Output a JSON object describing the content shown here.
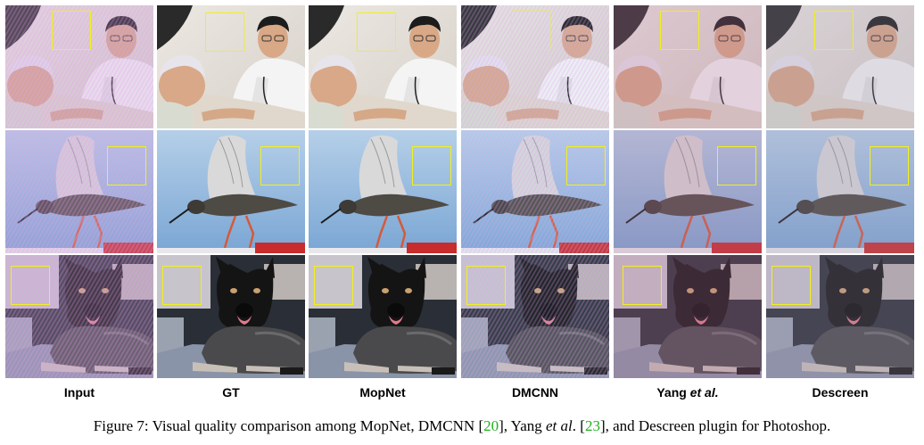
{
  "figure": {
    "columns": [
      {
        "label_text": "Input"
      },
      {
        "label_text": "GT"
      },
      {
        "label_text": "MopNet"
      },
      {
        "label_text": "DMCNN"
      },
      {
        "label_text_pre": "Yang ",
        "label_text_it": "et al."
      },
      {
        "label_text": "Descreen"
      }
    ],
    "rows": [
      {
        "subject": "doctor-and-baby"
      },
      {
        "subject": "bird-flying"
      },
      {
        "subject": "dog-lying"
      }
    ],
    "highlight_color": "#f2f01a",
    "cite_color": "#1fb01f"
  },
  "caption": {
    "prefix": "Figure 7: Visual quality comparison among MopNet, DMCNN [",
    "cite1": "20",
    "mid1": "], Yang ",
    "etal": "et al",
    "mid2": ". [",
    "cite2": "23",
    "suffix": "], and Descreen plugin for Photoshop."
  }
}
